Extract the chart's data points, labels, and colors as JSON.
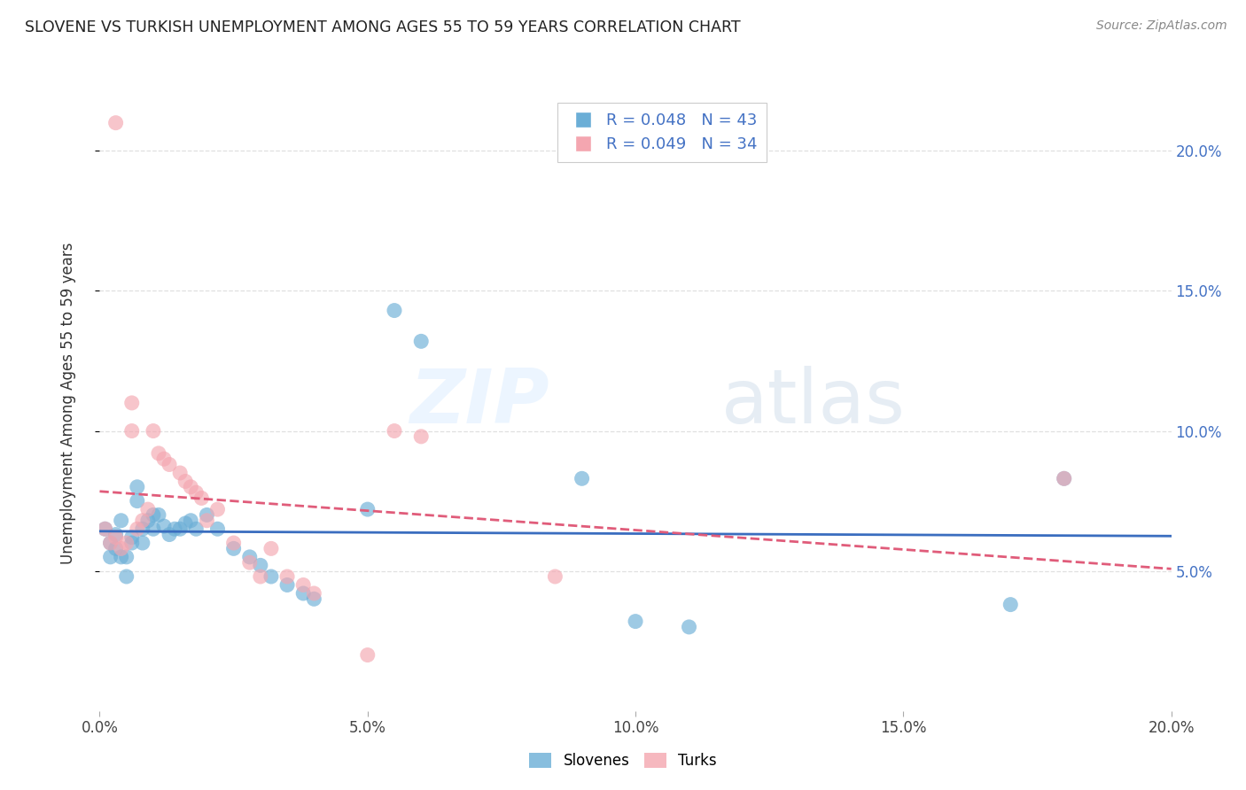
{
  "title": "SLOVENE VS TURKISH UNEMPLOYMENT AMONG AGES 55 TO 59 YEARS CORRELATION CHART",
  "source": "Source: ZipAtlas.com",
  "ylabel": "Unemployment Among Ages 55 to 59 years",
  "xlim": [
    0,
    0.2
  ],
  "ylim": [
    0,
    0.22
  ],
  "xticks": [
    0.0,
    0.05,
    0.1,
    0.15,
    0.2
  ],
  "yticks": [
    0.05,
    0.1,
    0.15,
    0.2
  ],
  "xticklabels": [
    "0.0%",
    "5.0%",
    "10.0%",
    "15.0%",
    "20.0%"
  ],
  "right_yticklabels": [
    "5.0%",
    "10.0%",
    "15.0%",
    "20.0%"
  ],
  "slovene_color": "#6baed6",
  "turk_color": "#f4a6b0",
  "trend_blue": "#3a6dbf",
  "trend_pink": "#e05c7a",
  "slovene_R": 0.048,
  "slovene_N": 43,
  "turk_R": 0.049,
  "turk_N": 34,
  "slovene_x": [
    0.001,
    0.002,
    0.002,
    0.003,
    0.003,
    0.004,
    0.004,
    0.005,
    0.005,
    0.006,
    0.006,
    0.007,
    0.007,
    0.008,
    0.008,
    0.009,
    0.01,
    0.01,
    0.011,
    0.012,
    0.013,
    0.014,
    0.015,
    0.016,
    0.017,
    0.018,
    0.02,
    0.022,
    0.025,
    0.028,
    0.03,
    0.032,
    0.035,
    0.038,
    0.04,
    0.05,
    0.055,
    0.06,
    0.09,
    0.1,
    0.11,
    0.17,
    0.18
  ],
  "slovene_y": [
    0.065,
    0.06,
    0.055,
    0.063,
    0.058,
    0.055,
    0.068,
    0.055,
    0.048,
    0.062,
    0.06,
    0.075,
    0.08,
    0.065,
    0.06,
    0.068,
    0.07,
    0.065,
    0.07,
    0.066,
    0.063,
    0.065,
    0.065,
    0.067,
    0.068,
    0.065,
    0.07,
    0.065,
    0.058,
    0.055,
    0.052,
    0.048,
    0.045,
    0.042,
    0.04,
    0.072,
    0.143,
    0.132,
    0.083,
    0.032,
    0.03,
    0.038,
    0.083
  ],
  "turk_x": [
    0.001,
    0.002,
    0.003,
    0.003,
    0.004,
    0.005,
    0.006,
    0.006,
    0.007,
    0.008,
    0.009,
    0.01,
    0.011,
    0.012,
    0.013,
    0.015,
    0.016,
    0.017,
    0.018,
    0.019,
    0.02,
    0.022,
    0.025,
    0.028,
    0.03,
    0.032,
    0.035,
    0.038,
    0.04,
    0.05,
    0.055,
    0.06,
    0.085,
    0.18
  ],
  "turk_y": [
    0.065,
    0.06,
    0.062,
    0.21,
    0.058,
    0.06,
    0.1,
    0.11,
    0.065,
    0.068,
    0.072,
    0.1,
    0.092,
    0.09,
    0.088,
    0.085,
    0.082,
    0.08,
    0.078,
    0.076,
    0.068,
    0.072,
    0.06,
    0.053,
    0.048,
    0.058,
    0.048,
    0.045,
    0.042,
    0.02,
    0.1,
    0.098,
    0.048,
    0.083
  ],
  "background_color": "#ffffff",
  "grid_color": "#e0e0e0",
  "watermark_zip": "ZIP",
  "watermark_atlas": "atlas",
  "watermark_color": "#d8e8f5",
  "watermark_atlas_color": "#c8d8e8"
}
